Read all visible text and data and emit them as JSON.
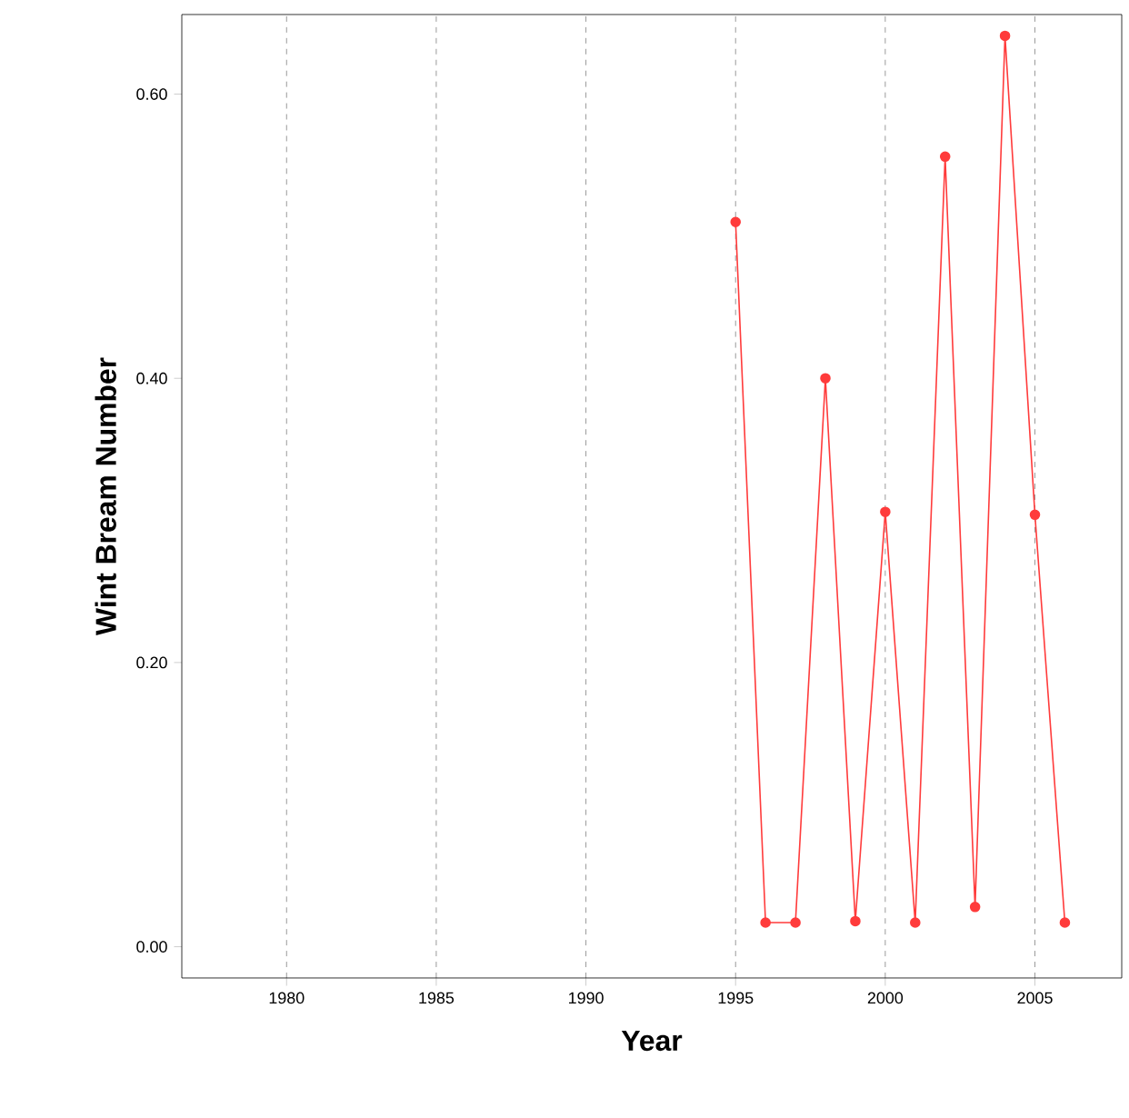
{
  "chart_data": {
    "type": "line",
    "xlabel": "Year",
    "ylabel": "Wint Bream Number",
    "x": [
      1995,
      1996,
      1997,
      1998,
      1999,
      2000,
      2001,
      2002,
      2003,
      2004,
      2005,
      2006
    ],
    "values": [
      0.51,
      0.017,
      0.017,
      0.4,
      0.018,
      0.306,
      0.017,
      0.556,
      0.028,
      0.641,
      0.304,
      0.017
    ],
    "color": "#ff3b3b",
    "marker": "circle",
    "line_style": "solid",
    "grid": "x",
    "xlim": [
      1976.5,
      2007.9
    ],
    "ylim": [
      -0.022,
      0.656
    ],
    "xticks": [
      1980,
      1985,
      1990,
      1995,
      2000,
      2005
    ],
    "yticks": [
      {
        "value": 0,
        "label": "0.00"
      },
      {
        "value": 0.2,
        "label": "0.20"
      },
      {
        "value": 0.4,
        "label": "0.40"
      },
      {
        "value": 0.6,
        "label": "0.60"
      }
    ]
  }
}
